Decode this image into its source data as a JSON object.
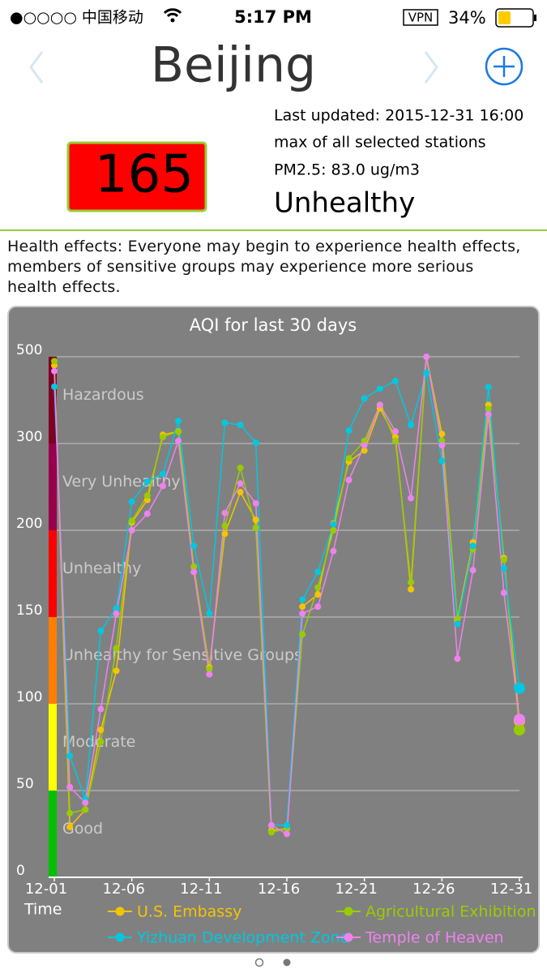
{
  "status_bar": {
    "carrier": "●○○○○ 中国移动",
    "time": "5:17 PM",
    "vpn": "VPN",
    "battery": "34%"
  },
  "header": {
    "city": "Beijing"
  },
  "summary": {
    "aqi": 165,
    "last_updated": "Last updated: 2015-12-31 16:00",
    "scope": "max of all selected stations",
    "pm25": "PM2.5: 83.0 ug/m3",
    "level": "Unhealthy"
  },
  "health_effects": "Health effects: Everyone may begin to experience health effects, members of sensitive groups may experience more serious health effects.",
  "chart_data": {
    "type": "line",
    "title": "AQI for last 30 days",
    "x_label": "Time",
    "categories": [
      "12-01",
      null,
      null,
      null,
      null,
      "12-06",
      null,
      null,
      null,
      null,
      "12-11",
      null,
      null,
      null,
      null,
      "12-16",
      null,
      null,
      null,
      null,
      "12-21",
      null,
      null,
      null,
      null,
      "12-26",
      null,
      null,
      null,
      null,
      "12-31"
    ],
    "ylim": [
      0,
      500
    ],
    "yticks": [
      0,
      50,
      100,
      150,
      200,
      300,
      500
    ],
    "grid": true,
    "bands": [
      {
        "label": "Good",
        "from": 0,
        "to": 50,
        "color": "#00c000"
      },
      {
        "label": "Moderate",
        "from": 50,
        "to": 100,
        "color": "#ffff00"
      },
      {
        "label": "Unhealthy for Sensitive Groups",
        "from": 100,
        "to": 150,
        "color": "#ff7e00"
      },
      {
        "label": "Unhealthy",
        "from": 150,
        "to": 200,
        "color": "#ff0000"
      },
      {
        "label": "Very Unhealthy",
        "from": 200,
        "to": 300,
        "color": "#99004c"
      },
      {
        "label": "Hazardous",
        "from": 300,
        "to": 500,
        "color": "#7e0023"
      }
    ],
    "series": [
      {
        "name": "U.S. Embassy",
        "color": "#f5c400",
        "values": [
          480,
          29,
          39,
          85,
          119,
          209,
          235,
          320,
          328,
          179,
          121,
          198,
          244,
          212,
          27,
          28,
          156,
          163,
          208,
          279,
          292,
          381,
          315,
          166,
          500,
          322,
          149,
          193,
          389,
          184,
          90
        ]
      },
      {
        "name": "Agricultural Exhibition Hall",
        "color": "#99cc00",
        "values": [
          490,
          37,
          39,
          78,
          132,
          211,
          240,
          315,
          328,
          179,
          120,
          205,
          272,
          203,
          26,
          28,
          140,
          167,
          200,
          283,
          306,
          389,
          306,
          170,
          500,
          306,
          149,
          189,
          380,
          183,
          85
        ]
      },
      {
        "name": "Yizhuan Development Zone",
        "color": "#00c8e0",
        "values": [
          431,
          70,
          45,
          142,
          155,
          233,
          256,
          265,
          352,
          191,
          152,
          348,
          343,
          302,
          30,
          30,
          160,
          176,
          207,
          330,
          404,
          426,
          444,
          343,
          463,
          280,
          146,
          191,
          430,
          178,
          109
        ]
      },
      {
        "name": "Temple of Heaven",
        "color": "#ee82ee",
        "values": [
          467,
          52,
          43,
          97,
          152,
          200,
          219,
          251,
          306,
          176,
          117,
          220,
          254,
          231,
          30,
          25,
          152,
          156,
          188,
          258,
          298,
          389,
          328,
          237,
          500,
          298,
          126,
          177,
          367,
          164,
          91
        ]
      }
    ]
  }
}
